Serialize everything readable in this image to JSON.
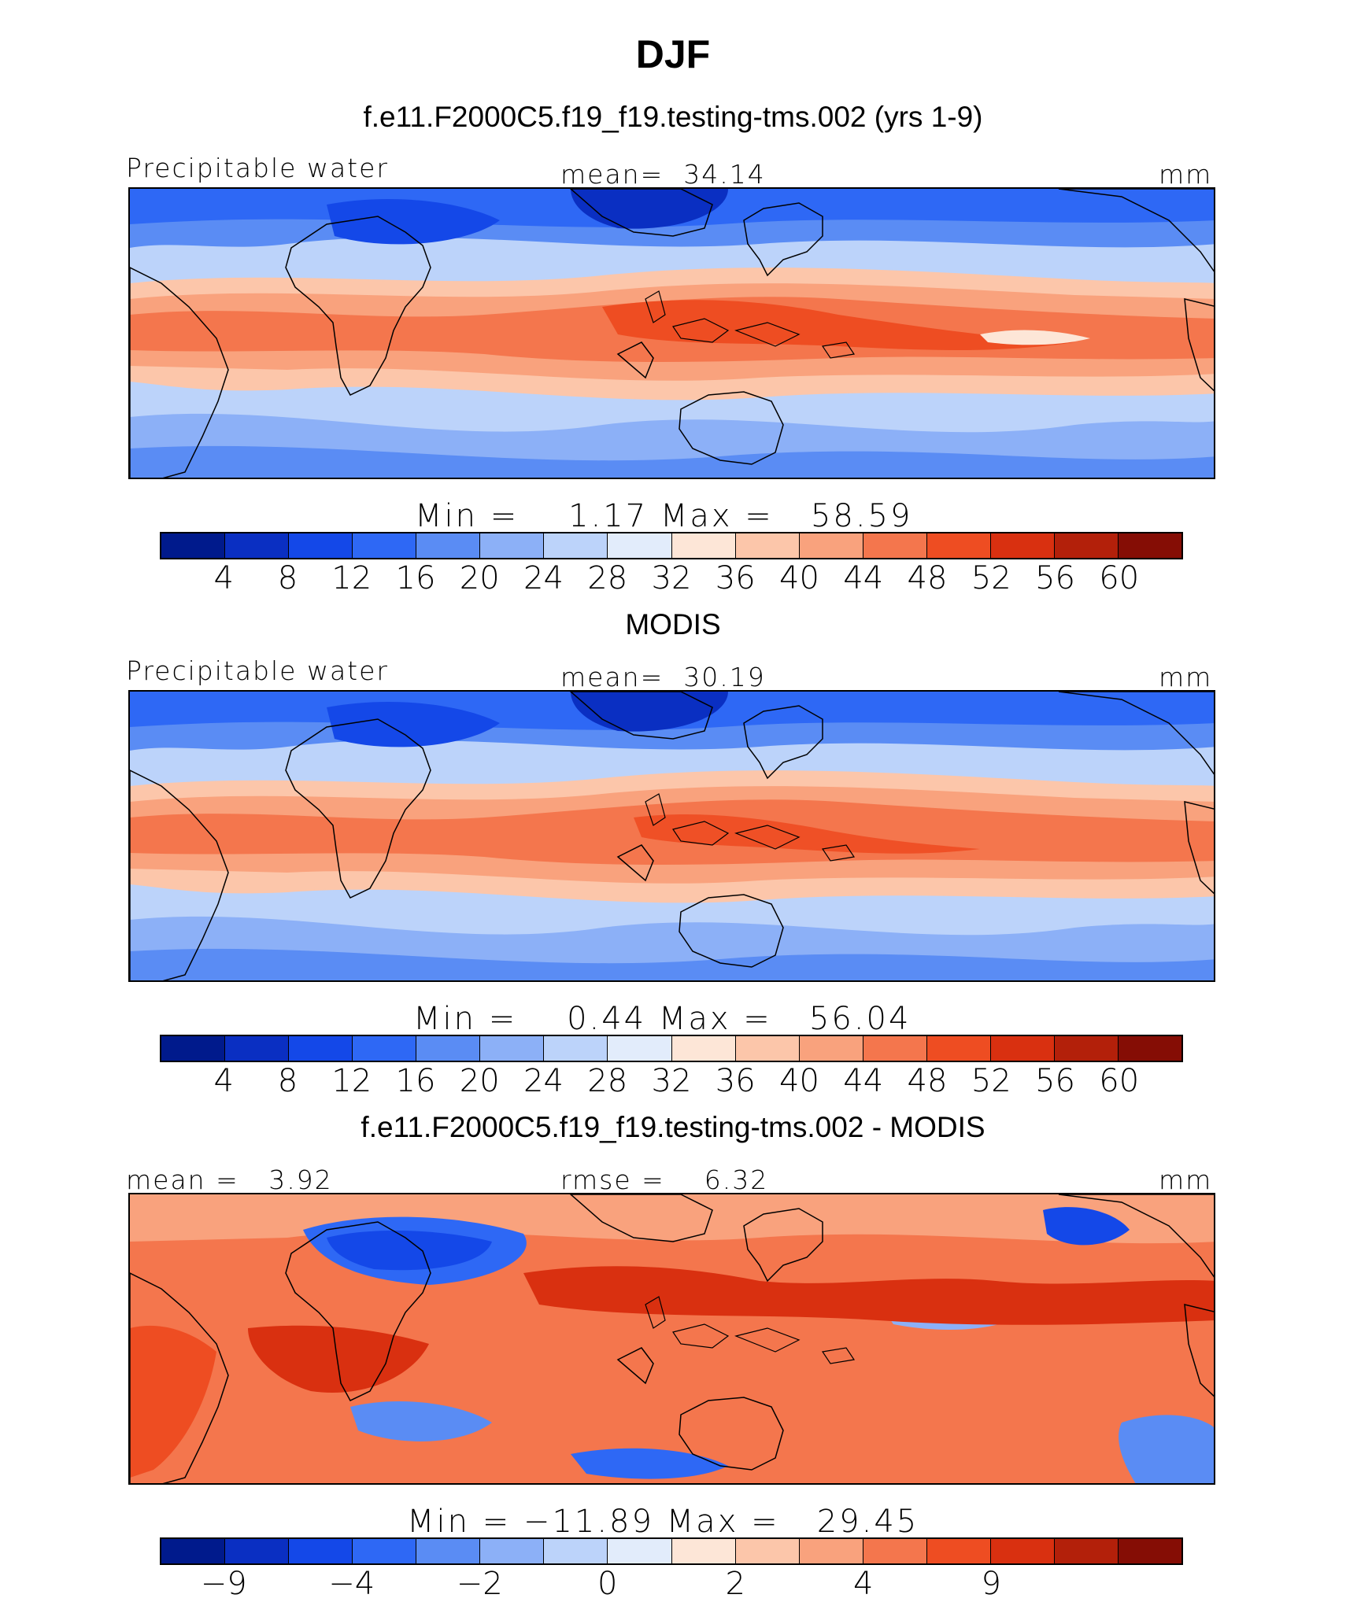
{
  "page_title": "DJF",
  "palette": [
    "#001a8c",
    "#0a2fc2",
    "#1448e8",
    "#2e68f5",
    "#5a8cf4",
    "#8cb0f7",
    "#bcd3fa",
    "#e2ecfb",
    "#fde6d7",
    "#fcc6aa",
    "#f9a27d",
    "#f4764d",
    "#ee4d22",
    "#d93010",
    "#b3200a",
    "#850d05"
  ],
  "chart_data": [
    {
      "type": "heatmap",
      "id": "model",
      "title": "f.e11.F2000C5.f19_f19.testing-tms.002 (yrs 1-9)",
      "left_label": "Precipitable water",
      "center_label": "mean=  34.14",
      "units": "mm",
      "min_max": "Min =    1.17 Max =   58.59",
      "min": 1.17,
      "max": 58.59,
      "mean": 34.14,
      "colorbar_levels": [
        "4",
        "8",
        "12",
        "16",
        "20",
        "24",
        "28",
        "32",
        "36",
        "40",
        "44",
        "48",
        "52",
        "56",
        "60"
      ]
    },
    {
      "type": "heatmap",
      "id": "obs",
      "title": "MODIS",
      "left_label": "Precipitable water",
      "center_label": "mean=  30.19",
      "units": "mm",
      "min_max": "Min =    0.44 Max =   56.04",
      "min": 0.44,
      "max": 56.04,
      "mean": 30.19,
      "colorbar_levels": [
        "4",
        "8",
        "12",
        "16",
        "20",
        "24",
        "28",
        "32",
        "36",
        "40",
        "44",
        "48",
        "52",
        "56",
        "60"
      ]
    },
    {
      "type": "heatmap",
      "id": "diff",
      "title": "f.e11.F2000C5.f19_f19.testing-tms.002 - MODIS",
      "left_label": "mean =   3.92",
      "center_label": "rmse =    6.32",
      "units": "mm",
      "min_max": "Min = −11.89 Max =   29.45",
      "min": -11.89,
      "max": 29.45,
      "mean": 3.92,
      "rmse": 6.32,
      "colorbar_levels": [
        "−9",
        "",
        "−4",
        "",
        "−2",
        "",
        "0",
        "",
        "2",
        "",
        "4",
        "",
        "9",
        "",
        ""
      ]
    }
  ]
}
